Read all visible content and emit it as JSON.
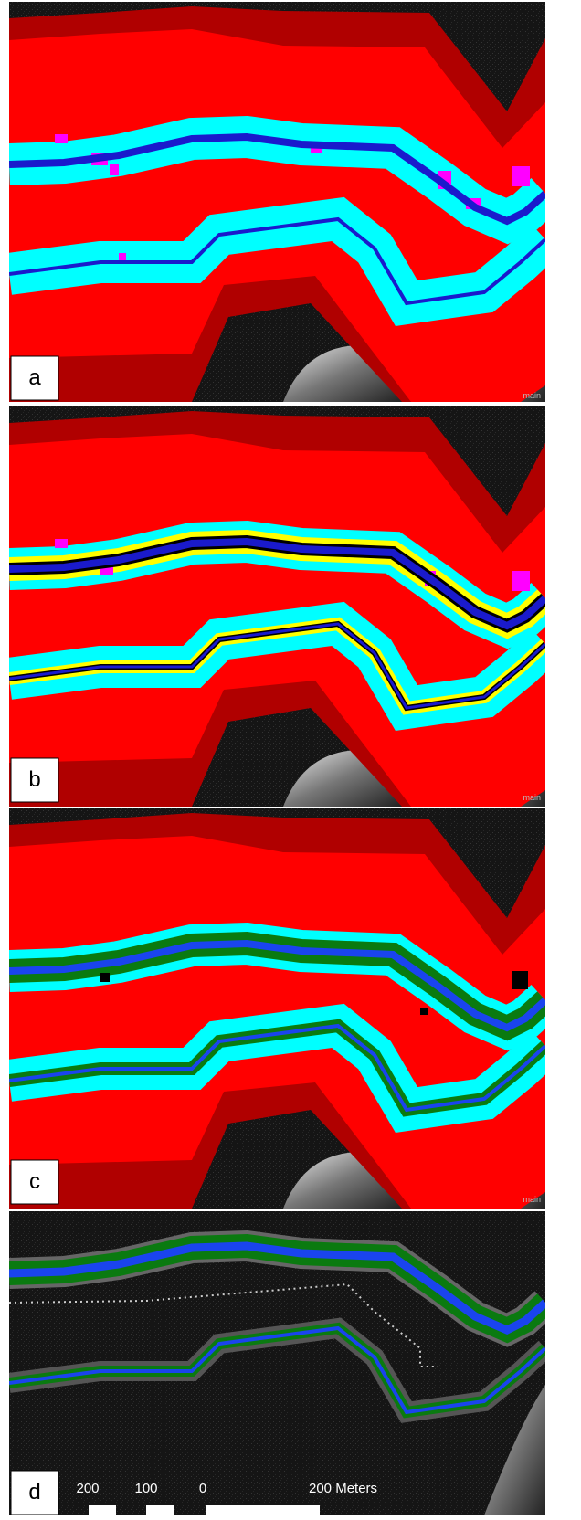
{
  "panels": [
    {
      "label": "a",
      "watermark": "main"
    },
    {
      "label": "b",
      "watermark": "main"
    },
    {
      "label": "c",
      "watermark": "main"
    },
    {
      "label": "d"
    }
  ],
  "scale_bar": {
    "labels": [
      "200",
      "100",
      "0",
      "200 Meters"
    ]
  }
}
